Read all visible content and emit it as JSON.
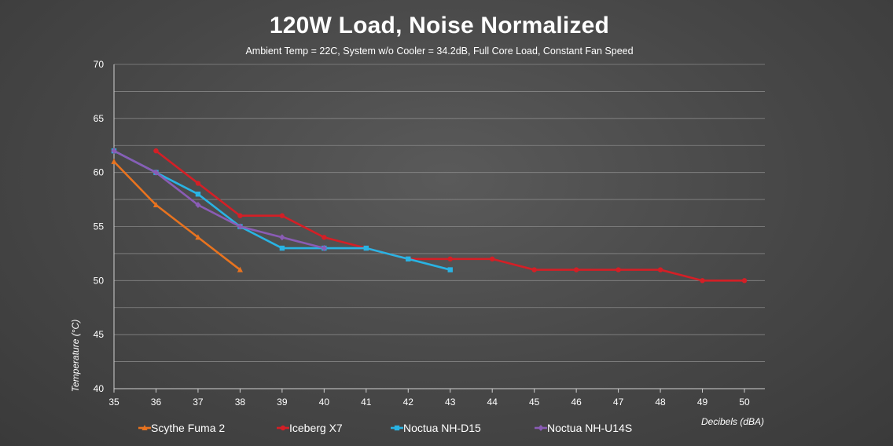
{
  "chart_data": {
    "type": "line",
    "title": "120W Load, Noise Normalized",
    "subtitle": "Ambient Temp = 22C, System w/o Cooler = 34.2dB, Full Core Load, Constant Fan Speed",
    "xlabel": "Decibels (dBA)",
    "ylabel": "Temperature (°C)",
    "xlim": [
      35,
      50
    ],
    "ylim": [
      40,
      70
    ],
    "x_ticks": [
      "35",
      "36",
      "37",
      "38",
      "39",
      "40",
      "41",
      "42",
      "43",
      "44",
      "45",
      "46",
      "47",
      "48",
      "49",
      "50"
    ],
    "y_ticks": [
      "40",
      "45",
      "50",
      "55",
      "60",
      "65",
      "70"
    ],
    "grid": true,
    "legend_position": "bottom",
    "series": [
      {
        "name": "Scythe Fuma 2",
        "color": "#e8731f",
        "marker": "triangle",
        "x": [
          35,
          36,
          37,
          38
        ],
        "y": [
          61,
          57,
          54,
          51
        ]
      },
      {
        "name": "Iceberg X7",
        "color": "#d41f26",
        "marker": "circle",
        "x": [
          36,
          37,
          38,
          39,
          40,
          41,
          42,
          43,
          44,
          45,
          46,
          47,
          48,
          49,
          50
        ],
        "y": [
          62,
          59,
          56,
          56,
          54,
          53,
          52,
          52,
          52,
          51,
          51,
          51,
          51,
          50,
          50
        ]
      },
      {
        "name": "Noctua NH-D15",
        "color": "#29b3e3",
        "marker": "square",
        "x": [
          35,
          36,
          37,
          38,
          39,
          40,
          41,
          42,
          43
        ],
        "y": [
          62,
          60,
          58,
          55,
          53,
          53,
          53,
          52,
          51
        ]
      },
      {
        "name": "Noctua NH-U14S",
        "color": "#8a5cb5",
        "marker": "diamond",
        "x": [
          35,
          36,
          37,
          38,
          39,
          40
        ],
        "y": [
          62,
          60,
          57,
          55,
          54,
          53
        ]
      }
    ]
  }
}
